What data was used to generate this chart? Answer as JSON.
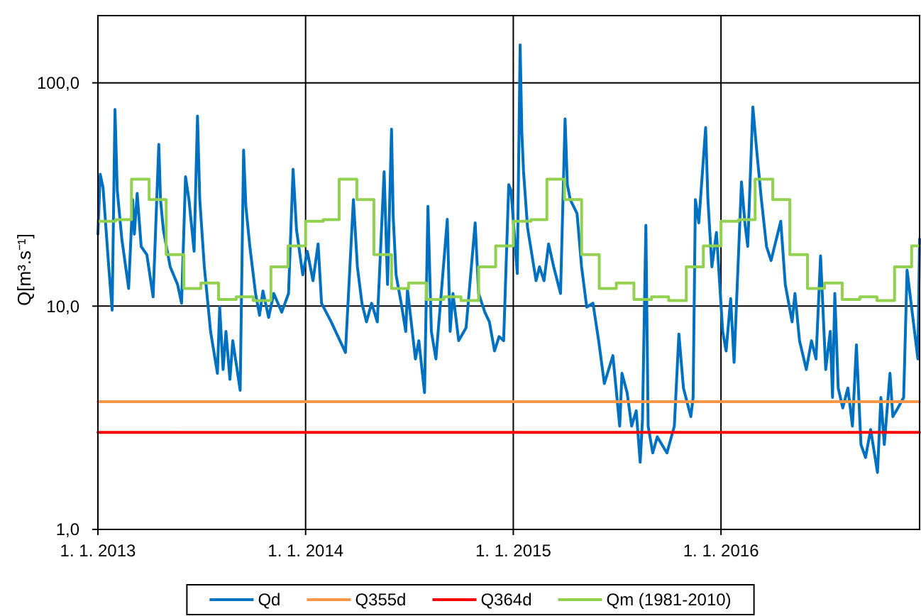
{
  "chart_data": {
    "type": "line",
    "ylabel": "Q[m³.s⁻¹]",
    "log": true,
    "grid": true,
    "legend": "bottom",
    "xlim": [
      "2013-01-01",
      "2016-12-15"
    ],
    "ylim": [
      1,
      200
    ],
    "xticks": [
      {
        "value": "2013-01-01",
        "label": "1. 1. 2013"
      },
      {
        "value": "2014-01-01",
        "label": "1. 1. 2014"
      },
      {
        "value": "2015-01-01",
        "label": "1. 1. 2015"
      },
      {
        "value": "2016-01-01",
        "label": "1. 1. 2016"
      }
    ],
    "yticks": [
      {
        "value": 1,
        "label": "1,0"
      },
      {
        "value": 10,
        "label": "10,0"
      },
      {
        "value": 100,
        "label": "100,0"
      }
    ],
    "series": [
      {
        "name": "Qd",
        "color": "#0070c0",
        "x": [
          "2013-01-01",
          "2013-01-05",
          "2013-01-10",
          "2013-01-20",
          "2013-01-26",
          "2013-01-31",
          "2013-02-04",
          "2013-02-12",
          "2013-02-24",
          "2013-03-03",
          "2013-03-06",
          "2013-03-11",
          "2013-03-18",
          "2013-03-28",
          "2013-04-08",
          "2013-04-18",
          "2013-04-21",
          "2013-04-26",
          "2013-05-08",
          "2013-05-21",
          "2013-05-28",
          "2013-06-04",
          "2013-06-10",
          "2013-06-19",
          "2013-06-25",
          "2013-06-29",
          "2013-07-07",
          "2013-07-18",
          "2013-07-30",
          "2013-08-03",
          "2013-08-09",
          "2013-08-14",
          "2013-08-21",
          "2013-08-26",
          "2013-09-08",
          "2013-09-14",
          "2013-09-18",
          "2013-09-25",
          "2013-10-05",
          "2013-10-12",
          "2013-10-18",
          "2013-10-28",
          "2013-11-06",
          "2013-11-20",
          "2013-12-02",
          "2013-12-10",
          "2013-12-16",
          "2013-12-27",
          "2014-01-04",
          "2014-01-14",
          "2014-01-23",
          "2014-01-29",
          "2014-02-15",
          "2014-03-12",
          "2014-03-26",
          "2014-04-02",
          "2014-04-10",
          "2014-04-18",
          "2014-04-27",
          "2014-05-07",
          "2014-05-19",
          "2014-05-25",
          "2014-06-01",
          "2014-06-04",
          "2014-06-09",
          "2014-06-18",
          "2014-06-26",
          "2014-06-29",
          "2014-07-13",
          "2014-07-19",
          "2014-07-29",
          "2014-08-04",
          "2014-08-10",
          "2014-08-18",
          "2014-09-07",
          "2014-09-12",
          "2014-09-17",
          "2014-09-27",
          "2014-10-10",
          "2014-10-26",
          "2014-11-01",
          "2014-11-12",
          "2014-11-20",
          "2014-11-29",
          "2014-12-07",
          "2014-12-15",
          "2014-12-24",
          "2014-12-28",
          "2015-01-08",
          "2015-01-13",
          "2015-01-16",
          "2015-01-19",
          "2015-01-26",
          "2015-02-10",
          "2015-02-16",
          "2015-02-24",
          "2015-03-04",
          "2015-03-13",
          "2015-03-25",
          "2015-04-02",
          "2015-04-06",
          "2015-04-11",
          "2015-04-23",
          "2015-05-01",
          "2015-05-10",
          "2015-05-21",
          "2015-05-31",
          "2015-06-10",
          "2015-06-25",
          "2015-07-07",
          "2015-07-11",
          "2015-07-20",
          "2015-07-28",
          "2015-08-05",
          "2015-08-12",
          "2015-08-16",
          "2015-08-22",
          "2015-08-26",
          "2015-09-03",
          "2015-09-11",
          "2015-09-28",
          "2015-10-11",
          "2015-10-19",
          "2015-10-27",
          "2015-11-09",
          "2015-11-13",
          "2015-11-17",
          "2015-11-23",
          "2015-12-05",
          "2015-12-09",
          "2015-12-16",
          "2015-12-24",
          "2016-01-04",
          "2016-01-10",
          "2016-01-18",
          "2016-01-24",
          "2016-02-06",
          "2016-02-12",
          "2016-02-17",
          "2016-02-26",
          "2016-03-04",
          "2016-03-12",
          "2016-03-21",
          "2016-03-29",
          "2016-04-15",
          "2016-04-23",
          "2016-05-05",
          "2016-05-10",
          "2016-05-18",
          "2016-05-30",
          "2016-06-08",
          "2016-06-16",
          "2016-06-24",
          "2016-07-03",
          "2016-07-11",
          "2016-07-15",
          "2016-07-19",
          "2016-07-25",
          "2016-08-02",
          "2016-08-11",
          "2016-08-19",
          "2016-08-26",
          "2016-09-03",
          "2016-09-11",
          "2016-09-20",
          "2016-10-02",
          "2016-10-08",
          "2016-10-14",
          "2016-10-24",
          "2016-10-29",
          "2016-11-07",
          "2016-11-17",
          "2016-11-23",
          "2016-12-12",
          "2016-12-15"
        ],
        "values": [
          21,
          39,
          34,
          15,
          9.6,
          76,
          33,
          20,
          12,
          30,
          21,
          32,
          18.5,
          17,
          11,
          53,
          30,
          22,
          15,
          12.5,
          10.3,
          38,
          30,
          17.6,
          71,
          30,
          15,
          7.7,
          5,
          9.9,
          5.2,
          7.7,
          4.7,
          7,
          4.2,
          50,
          28,
          18.5,
          11.4,
          9.1,
          11.7,
          8.9,
          11.4,
          9.4,
          11.4,
          41,
          22,
          13.8,
          17.6,
          13,
          19,
          10.3,
          8.5,
          6.2,
          30,
          15,
          10.3,
          8.5,
          10.3,
          8.5,
          40,
          12.5,
          62,
          25,
          13.8,
          10.3,
          7.7,
          11.9,
          5.8,
          7,
          4.1,
          28,
          7.7,
          5.8,
          24.5,
          7.7,
          11.4,
          7,
          8,
          23.6,
          11.4,
          9.4,
          8.5,
          6.3,
          7.3,
          7,
          35,
          33,
          14,
          148,
          60,
          40,
          22.5,
          13,
          15,
          13,
          19,
          15,
          11.4,
          69,
          35,
          30,
          26,
          15,
          9.9,
          10.3,
          7,
          4.5,
          6,
          2.9,
          5,
          4.1,
          2.9,
          3.4,
          2,
          3.1,
          23,
          2.9,
          2.2,
          2.6,
          2.2,
          2.9,
          7.5,
          4.3,
          3.2,
          3.9,
          30,
          23.6,
          63,
          30,
          15,
          21.4,
          7.7,
          6.3,
          10.8,
          5.6,
          36,
          23.6,
          18.5,
          78,
          49,
          30,
          18.5,
          16,
          24,
          12.5,
          8.5,
          11.4,
          7,
          5.2,
          7,
          5.8,
          16.8,
          5.2,
          7.7,
          3.9,
          11.4,
          4.3,
          3.5,
          4.3,
          2.9,
          6.7,
          2.4,
          2.1,
          2.8,
          1.8,
          3.9,
          2.4,
          5,
          3.2,
          3.5,
          3.9,
          14.5,
          5.8,
          20
        ]
      },
      {
        "name": "Q355d",
        "color": "#f79646",
        "x": [
          "2013-01-01",
          "2016-12-15"
        ],
        "values": [
          3.73,
          3.73
        ]
      },
      {
        "name": "Q364d",
        "color": "#ff0000",
        "x": [
          "2013-01-01",
          "2016-12-15"
        ],
        "values": [
          2.72,
          2.72
        ]
      },
      {
        "name": "Qm (1981-2010)",
        "type": "step",
        "color": "#92d050",
        "x": [
          "2013-01-01",
          "2013-02-01",
          "2013-03-01",
          "2013-04-01",
          "2013-05-01",
          "2013-06-01",
          "2013-07-01",
          "2013-08-01",
          "2013-09-01",
          "2013-10-01",
          "2013-11-01",
          "2013-12-01",
          "2014-01-01",
          "2014-02-01",
          "2014-03-01",
          "2014-04-01",
          "2014-05-01",
          "2014-06-01",
          "2014-07-01",
          "2014-08-01",
          "2014-09-01",
          "2014-10-01",
          "2014-11-01",
          "2014-12-01",
          "2015-01-01",
          "2015-02-01",
          "2015-03-01",
          "2015-04-01",
          "2015-05-01",
          "2015-06-01",
          "2015-07-01",
          "2015-08-01",
          "2015-09-01",
          "2015-10-01",
          "2015-11-01",
          "2015-12-01",
          "2016-01-01",
          "2016-02-01",
          "2016-03-01",
          "2016-04-01",
          "2016-05-01",
          "2016-06-01",
          "2016-07-01",
          "2016-08-01",
          "2016-09-01",
          "2016-10-01",
          "2016-11-01",
          "2016-12-01",
          "2016-12-15"
        ],
        "values": [
          24,
          24.4,
          37,
          30,
          17,
          12,
          12.7,
          10.7,
          11,
          10.6,
          15,
          18.6,
          24,
          24.4,
          37,
          30,
          17,
          12,
          12.7,
          10.7,
          11,
          10.6,
          15,
          18.6,
          24,
          24.4,
          37,
          30,
          17,
          12,
          12.7,
          10.7,
          11,
          10.6,
          15,
          18.6,
          24,
          24.4,
          37,
          30,
          17,
          12,
          12.7,
          10.7,
          11,
          10.6,
          15,
          18.6,
          18.6
        ]
      }
    ]
  }
}
